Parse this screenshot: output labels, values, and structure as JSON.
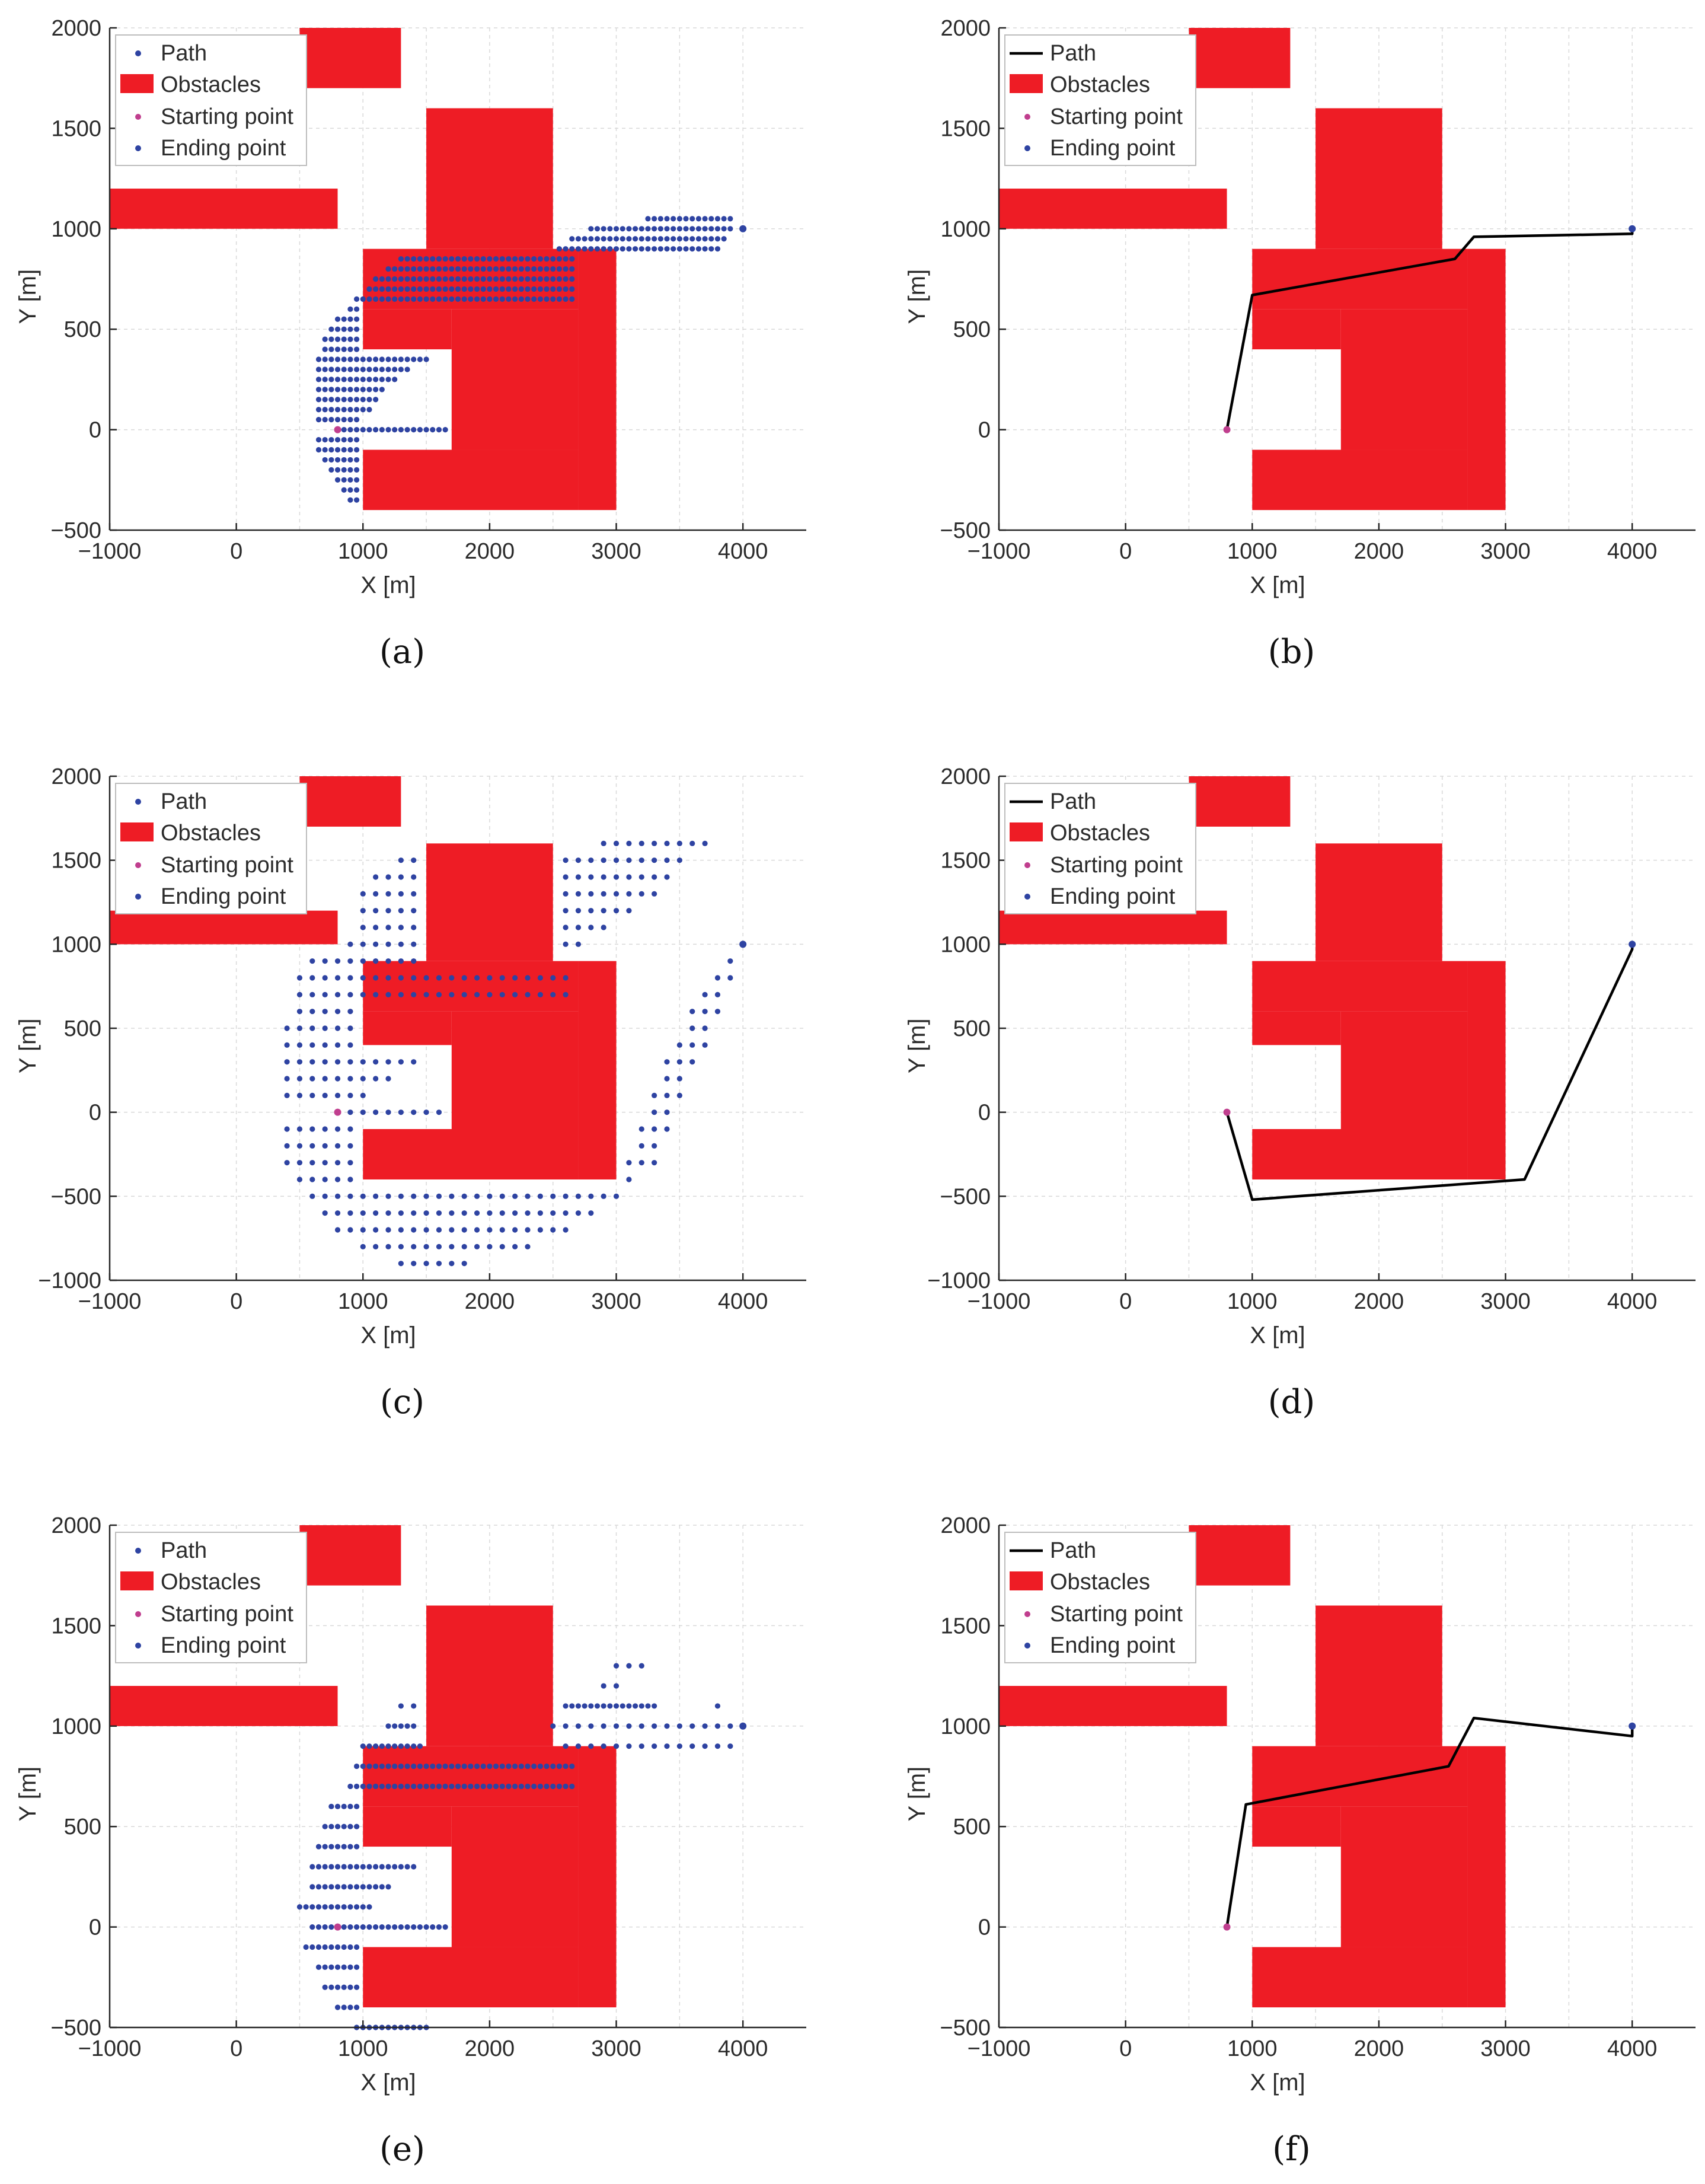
{
  "colors": {
    "obstacle": "#ee1c25",
    "point": "#2e43a2",
    "start": "#c03e8e",
    "line": "#000000",
    "grid": "#d9d9d9",
    "axis": "#262626"
  },
  "labels": {
    "xlabel": "X [m]",
    "ylabel": "Y [m]"
  },
  "obstacles": [
    {
      "x0": 500,
      "x1": 1300,
      "y0": 1700,
      "y1": 2000
    },
    {
      "x0": 1500,
      "x1": 2500,
      "y0": 900,
      "y1": 1600
    },
    {
      "x0": -1000,
      "x1": 800,
      "y0": 1000,
      "y1": 1200
    },
    {
      "x0": 1000,
      "x1": 2700,
      "y0": 600,
      "y1": 900
    },
    {
      "x0": 2700,
      "x1": 3000,
      "y0": -400,
      "y1": 900
    },
    {
      "x0": 1000,
      "x1": 1700,
      "y0": 400,
      "y1": 600
    },
    {
      "x0": 1700,
      "x1": 2700,
      "y0": -100,
      "y1": 600
    },
    {
      "x0": 1000,
      "x1": 2700,
      "y0": -400,
      "y1": -100
    }
  ],
  "start": [
    800,
    0
  ],
  "end": [
    4000,
    1000
  ],
  "chart_data": [
    {
      "panel": "a",
      "caption": "(a)",
      "type": "scatter",
      "xlim": [
        -1000,
        4500
      ],
      "ylim": [
        -500,
        2000
      ],
      "xticks": [
        -1000,
        0,
        1000,
        2000,
        3000,
        4000
      ],
      "xtick_labels": [
        "−1000",
        "0",
        "1000",
        "2000",
        "3000",
        "4000"
      ],
      "yticks": [
        -500,
        0,
        500,
        1000,
        1500,
        2000
      ],
      "ytick_labels": [
        "−500",
        "0",
        "500",
        "1000",
        "1500",
        "2000"
      ],
      "legend": [
        "Path",
        "Obstacles",
        "Starting point",
        "Ending point"
      ],
      "explored_rows": [
        {
          "y": 1050,
          "x_from": 3250,
          "x_to": 3900,
          "step": 50
        },
        {
          "y": 1000,
          "x_from": 2800,
          "x_to": 3900,
          "step": 50
        },
        {
          "y": 950,
          "x_from": 2650,
          "x_to": 3850,
          "step": 50
        },
        {
          "y": 900,
          "x_from": 2550,
          "x_to": 3800,
          "step": 50
        },
        {
          "y": 850,
          "x_from": 1300,
          "x_to": 2650,
          "step": 50
        },
        {
          "y": 800,
          "x_from": 1200,
          "x_to": 2650,
          "step": 50
        },
        {
          "y": 750,
          "x_from": 1100,
          "x_to": 2650,
          "step": 50
        },
        {
          "y": 700,
          "x_from": 1050,
          "x_to": 2650,
          "step": 50
        },
        {
          "y": 650,
          "x_from": 950,
          "x_to": 2650,
          "step": 50
        },
        {
          "y": 600,
          "x_from": 900,
          "x_to": 950,
          "step": 50
        },
        {
          "y": 550,
          "x_from": 800,
          "x_to": 950,
          "step": 50
        },
        {
          "y": 500,
          "x_from": 750,
          "x_to": 950,
          "step": 50
        },
        {
          "y": 450,
          "x_from": 700,
          "x_to": 950,
          "step": 50
        },
        {
          "y": 400,
          "x_from": 700,
          "x_to": 950,
          "step": 50
        },
        {
          "y": 350,
          "x_from": 650,
          "x_to": 1500,
          "step": 50
        },
        {
          "y": 300,
          "x_from": 650,
          "x_to": 1350,
          "step": 50
        },
        {
          "y": 250,
          "x_from": 650,
          "x_to": 1250,
          "step": 50
        },
        {
          "y": 200,
          "x_from": 650,
          "x_to": 1150,
          "step": 50
        },
        {
          "y": 150,
          "x_from": 650,
          "x_to": 1100,
          "step": 50
        },
        {
          "y": 100,
          "x_from": 650,
          "x_to": 1050,
          "step": 50
        },
        {
          "y": 50,
          "x_from": 650,
          "x_to": 950,
          "step": 50
        },
        {
          "y": 0,
          "x_from": 850,
          "x_to": 1650,
          "step": 50
        },
        {
          "y": -50,
          "x_from": 650,
          "x_to": 950,
          "step": 50
        },
        {
          "y": -100,
          "x_from": 650,
          "x_to": 950,
          "step": 50
        },
        {
          "y": -150,
          "x_from": 700,
          "x_to": 950,
          "step": 50
        },
        {
          "y": -200,
          "x_from": 750,
          "x_to": 950,
          "step": 50
        },
        {
          "y": -250,
          "x_from": 800,
          "x_to": 950,
          "step": 50
        },
        {
          "y": -300,
          "x_from": 850,
          "x_to": 950,
          "step": 50
        },
        {
          "y": -350,
          "x_from": 900,
          "x_to": 950,
          "step": 50
        }
      ]
    },
    {
      "panel": "b",
      "caption": "(b)",
      "type": "line",
      "xlim": [
        -1000,
        4500
      ],
      "ylim": [
        -500,
        2000
      ],
      "xticks": [
        -1000,
        0,
        1000,
        2000,
        3000,
        4000
      ],
      "xtick_labels": [
        "−1000",
        "0",
        "1000",
        "2000",
        "3000",
        "4000"
      ],
      "yticks": [
        -500,
        0,
        500,
        1000,
        1500,
        2000
      ],
      "ytick_labels": [
        "−500",
        "0",
        "500",
        "1000",
        "1500",
        "2000"
      ],
      "legend": [
        "Path",
        "Obstacles",
        "Starting point",
        "Ending point"
      ],
      "path": [
        [
          800,
          0
        ],
        [
          1000,
          670
        ],
        [
          2600,
          850
        ],
        [
          2750,
          960
        ],
        [
          4000,
          975
        ],
        [
          4000,
          1000
        ]
      ]
    },
    {
      "panel": "c",
      "caption": "(c)",
      "type": "scatter",
      "xlim": [
        -1000,
        4500
      ],
      "ylim": [
        -1000,
        2000
      ],
      "xticks": [
        -1000,
        0,
        1000,
        2000,
        3000,
        4000
      ],
      "xtick_labels": [
        "−1000",
        "0",
        "1000",
        "2000",
        "3000",
        "4000"
      ],
      "yticks": [
        -1000,
        -500,
        0,
        500,
        1000,
        1500,
        2000
      ],
      "ytick_labels": [
        "−1000",
        "−500",
        "0",
        "500",
        "1000",
        "1500",
        "2000"
      ],
      "legend": [
        "Path",
        "Obstacles",
        "Starting point",
        "Ending point"
      ],
      "explored_rows": [
        {
          "y": 1600,
          "x_from": 2900,
          "x_to": 3700,
          "step": 100
        },
        {
          "y": 1500,
          "x_from": 1300,
          "x_to": 1400,
          "step": 100
        },
        {
          "y": 1500,
          "x_from": 2600,
          "x_to": 3500,
          "step": 100
        },
        {
          "y": 1400,
          "x_from": 1100,
          "x_to": 1400,
          "step": 100
        },
        {
          "y": 1400,
          "x_from": 2600,
          "x_to": 3400,
          "step": 100
        },
        {
          "y": 1300,
          "x_from": 1000,
          "x_to": 1400,
          "step": 100
        },
        {
          "y": 1300,
          "x_from": 2600,
          "x_to": 3300,
          "step": 100
        },
        {
          "y": 1200,
          "x_from": 1000,
          "x_to": 1400,
          "step": 100
        },
        {
          "y": 1200,
          "x_from": 2600,
          "x_to": 3100,
          "step": 100
        },
        {
          "y": 1100,
          "x_from": 1000,
          "x_to": 1400,
          "step": 100
        },
        {
          "y": 1100,
          "x_from": 2600,
          "x_to": 2900,
          "step": 100
        },
        {
          "y": 1000,
          "x_from": 900,
          "x_to": 1400,
          "step": 100
        },
        {
          "y": 1000,
          "x_from": 2600,
          "x_to": 2700,
          "step": 100
        },
        {
          "y": 900,
          "x_from": 600,
          "x_to": 1400,
          "step": 100
        },
        {
          "y": 900,
          "x_from": 3900,
          "x_to": 3900,
          "step": 100
        },
        {
          "y": 800,
          "x_from": 500,
          "x_to": 2600,
          "step": 100
        },
        {
          "y": 800,
          "x_from": 3800,
          "x_to": 3900,
          "step": 100
        },
        {
          "y": 700,
          "x_from": 500,
          "x_to": 2600,
          "step": 100
        },
        {
          "y": 700,
          "x_from": 3700,
          "x_to": 3800,
          "step": 100
        },
        {
          "y": 600,
          "x_from": 500,
          "x_to": 900,
          "step": 100
        },
        {
          "y": 600,
          "x_from": 3600,
          "x_to": 3800,
          "step": 100
        },
        {
          "y": 500,
          "x_from": 400,
          "x_to": 900,
          "step": 100
        },
        {
          "y": 500,
          "x_from": 3600,
          "x_to": 3700,
          "step": 100
        },
        {
          "y": 400,
          "x_from": 400,
          "x_to": 900,
          "step": 100
        },
        {
          "y": 400,
          "x_from": 3500,
          "x_to": 3700,
          "step": 100
        },
        {
          "y": 300,
          "x_from": 400,
          "x_to": 1400,
          "step": 100
        },
        {
          "y": 300,
          "x_from": 3400,
          "x_to": 3600,
          "step": 100
        },
        {
          "y": 200,
          "x_from": 400,
          "x_to": 1200,
          "step": 100
        },
        {
          "y": 200,
          "x_from": 3400,
          "x_to": 3500,
          "step": 100
        },
        {
          "y": 100,
          "x_from": 400,
          "x_to": 1000,
          "step": 100
        },
        {
          "y": 100,
          "x_from": 3300,
          "x_to": 3500,
          "step": 100
        },
        {
          "y": 0,
          "x_from": 800,
          "x_to": 1600,
          "step": 100
        },
        {
          "y": 0,
          "x_from": 3300,
          "x_to": 3400,
          "step": 100
        },
        {
          "y": -100,
          "x_from": 400,
          "x_to": 900,
          "step": 100
        },
        {
          "y": -100,
          "x_from": 3200,
          "x_to": 3400,
          "step": 100
        },
        {
          "y": -200,
          "x_from": 400,
          "x_to": 900,
          "step": 100
        },
        {
          "y": -200,
          "x_from": 3200,
          "x_to": 3300,
          "step": 100
        },
        {
          "y": -300,
          "x_from": 400,
          "x_to": 900,
          "step": 100
        },
        {
          "y": -300,
          "x_from": 3100,
          "x_to": 3300,
          "step": 100
        },
        {
          "y": -400,
          "x_from": 500,
          "x_to": 900,
          "step": 100
        },
        {
          "y": -400,
          "x_from": 3100,
          "x_to": 3100,
          "step": 100
        },
        {
          "y": -500,
          "x_from": 600,
          "x_to": 3000,
          "step": 100
        },
        {
          "y": -600,
          "x_from": 700,
          "x_to": 2800,
          "step": 100
        },
        {
          "y": -700,
          "x_from": 800,
          "x_to": 2600,
          "step": 100
        },
        {
          "y": -800,
          "x_from": 1000,
          "x_to": 2300,
          "step": 100
        },
        {
          "y": -900,
          "x_from": 1300,
          "x_to": 1800,
          "step": 100
        }
      ]
    },
    {
      "panel": "d",
      "caption": "(d)",
      "type": "line",
      "xlim": [
        -1000,
        4500
      ],
      "ylim": [
        -1000,
        2000
      ],
      "xticks": [
        -1000,
        0,
        1000,
        2000,
        3000,
        4000
      ],
      "xtick_labels": [
        "−1000",
        "0",
        "1000",
        "2000",
        "3000",
        "4000"
      ],
      "yticks": [
        -1000,
        -500,
        0,
        500,
        1000,
        1500,
        2000
      ],
      "ytick_labels": [
        "−1000",
        "−500",
        "0",
        "500",
        "1000",
        "1500",
        "2000"
      ],
      "legend": [
        "Path",
        "Obstacles",
        "Starting point",
        "Ending point"
      ],
      "path": [
        [
          800,
          0
        ],
        [
          1000,
          -520
        ],
        [
          3150,
          -400
        ],
        [
          4000,
          970
        ],
        [
          4000,
          1000
        ]
      ]
    },
    {
      "panel": "e",
      "caption": "(e)",
      "type": "scatter",
      "xlim": [
        -1000,
        4500
      ],
      "ylim": [
        -500,
        2000
      ],
      "xticks": [
        -1000,
        0,
        1000,
        2000,
        3000,
        4000
      ],
      "xtick_labels": [
        "−1000",
        "0",
        "1000",
        "2000",
        "3000",
        "4000"
      ],
      "yticks": [
        -500,
        0,
        500,
        1000,
        1500,
        2000
      ],
      "ytick_labels": [
        "−500",
        "0",
        "500",
        "1000",
        "1500",
        "2000"
      ],
      "legend": [
        "Path",
        "Obstacles",
        "Starting point",
        "Ending point"
      ],
      "explored_rows": [
        {
          "y": 1300,
          "x_from": 3000,
          "x_to": 3200,
          "step": 100
        },
        {
          "y": 1200,
          "x_from": 2900,
          "x_to": 3000,
          "step": 100
        },
        {
          "y": 1100,
          "x_from": 1300,
          "x_to": 1400,
          "step": 100
        },
        {
          "y": 1100,
          "x_from": 2600,
          "x_to": 3300,
          "step": 50
        },
        {
          "y": 1100,
          "x_from": 3800,
          "x_to": 3800,
          "step": 100
        },
        {
          "y": 1000,
          "x_from": 1200,
          "x_to": 1400,
          "step": 50
        },
        {
          "y": 1000,
          "x_from": 2500,
          "x_to": 4000,
          "step": 100
        },
        {
          "y": 900,
          "x_from": 1000,
          "x_to": 1450,
          "step": 50
        },
        {
          "y": 900,
          "x_from": 2600,
          "x_to": 3900,
          "step": 100
        },
        {
          "y": 800,
          "x_from": 950,
          "x_to": 2650,
          "step": 50
        },
        {
          "y": 700,
          "x_from": 900,
          "x_to": 2650,
          "step": 50
        },
        {
          "y": 600,
          "x_from": 750,
          "x_to": 950,
          "step": 50
        },
        {
          "y": 500,
          "x_from": 700,
          "x_to": 950,
          "step": 50
        },
        {
          "y": 400,
          "x_from": 650,
          "x_to": 950,
          "step": 50
        },
        {
          "y": 300,
          "x_from": 600,
          "x_to": 1400,
          "step": 50
        },
        {
          "y": 200,
          "x_from": 600,
          "x_to": 1200,
          "step": 50
        },
        {
          "y": 100,
          "x_from": 500,
          "x_to": 1050,
          "step": 50
        },
        {
          "y": 0,
          "x_from": 600,
          "x_to": 1650,
          "step": 50
        },
        {
          "y": -100,
          "x_from": 550,
          "x_to": 950,
          "step": 50
        },
        {
          "y": -200,
          "x_from": 650,
          "x_to": 950,
          "step": 50
        },
        {
          "y": -300,
          "x_from": 700,
          "x_to": 950,
          "step": 50
        },
        {
          "y": -400,
          "x_from": 800,
          "x_to": 950,
          "step": 50
        },
        {
          "y": -500,
          "x_from": 950,
          "x_to": 1500,
          "step": 50
        }
      ]
    },
    {
      "panel": "f",
      "caption": "(f)",
      "type": "line",
      "xlim": [
        -1000,
        4500
      ],
      "ylim": [
        -500,
        2000
      ],
      "xticks": [
        -1000,
        0,
        1000,
        2000,
        3000,
        4000
      ],
      "xtick_labels": [
        "−1000",
        "0",
        "1000",
        "2000",
        "3000",
        "4000"
      ],
      "yticks": [
        -500,
        0,
        500,
        1000,
        1500,
        2000
      ],
      "ytick_labels": [
        "−500",
        "0",
        "500",
        "1000",
        "1500",
        "2000"
      ],
      "legend": [
        "Path",
        "Obstacles",
        "Starting point",
        "Ending point"
      ],
      "path": [
        [
          800,
          0
        ],
        [
          950,
          610
        ],
        [
          2550,
          800
        ],
        [
          2750,
          1040
        ],
        [
          4000,
          950
        ],
        [
          4000,
          1000
        ]
      ]
    }
  ]
}
